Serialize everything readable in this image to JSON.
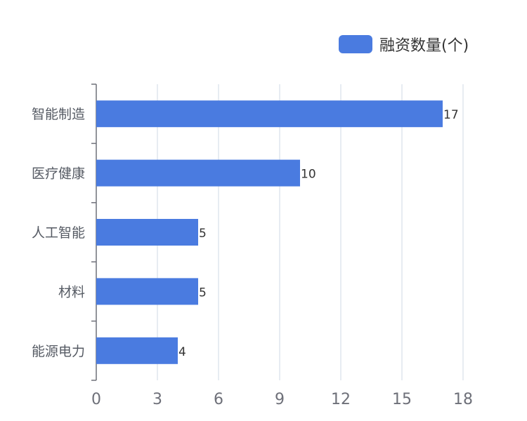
{
  "chart_data": {
    "type": "bar",
    "orientation": "horizontal",
    "categories": [
      "智能制造",
      "医疗健康",
      "人工智能",
      "材料",
      "能源电力"
    ],
    "series": [
      {
        "name": "融资数量(个)",
        "values": [
          17,
          10,
          5,
          5,
          4
        ]
      }
    ],
    "xlim": [
      0,
      18
    ],
    "x_ticks": [
      "0",
      "3",
      "6",
      "9",
      "12",
      "15",
      "18"
    ],
    "grid": "vertical",
    "legend_position": "top-right",
    "bar_color": "#4a7be0",
    "grid_color": "#dfe6ee",
    "axis_color": "#6e7079"
  }
}
